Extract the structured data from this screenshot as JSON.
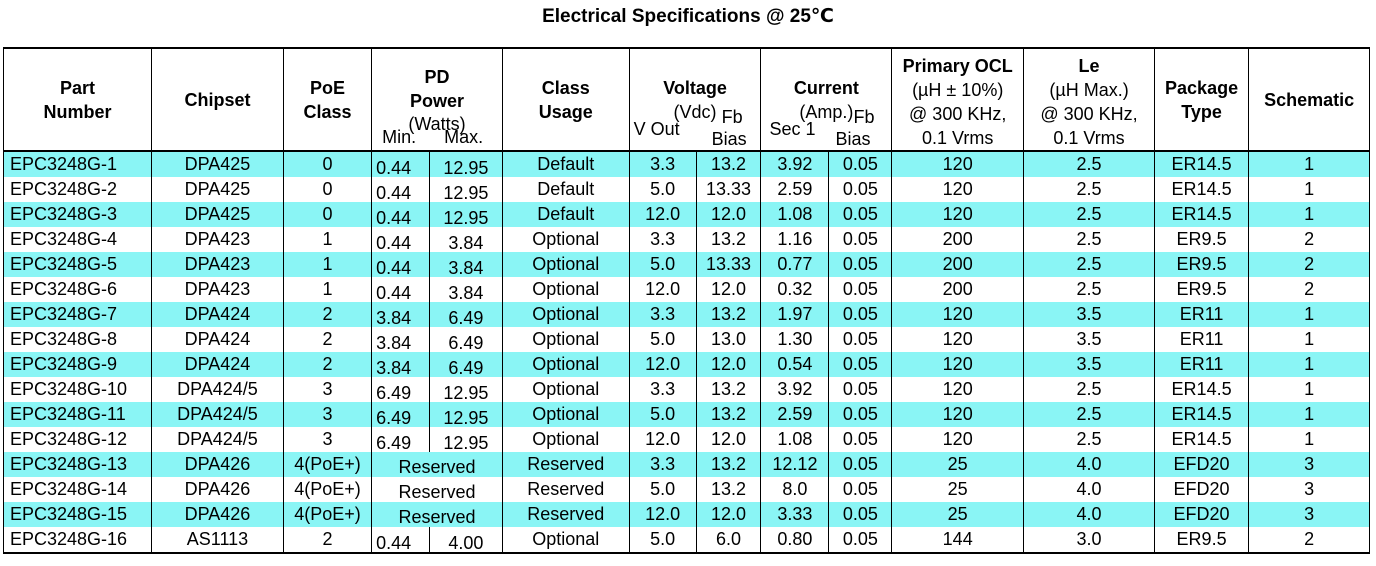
{
  "title": "Electrical Specifications @ 25℃",
  "headers": {
    "part": [
      "Part",
      "Number"
    ],
    "chipset": "Chipset",
    "poe": [
      "PoE",
      "Class"
    ],
    "pd": [
      "PD",
      "Power",
      "(Watts)"
    ],
    "pd_min": "Min.",
    "pd_max": "Max.",
    "class_usage": [
      "Class",
      "Usage"
    ],
    "voltage": [
      "Voltage",
      "(Vdc)"
    ],
    "vout": "V Out",
    "vfb": [
      "Fb",
      "Bias"
    ],
    "current": [
      "Current",
      "(Amp.)"
    ],
    "isec": "Sec 1",
    "ifb": [
      "Fb",
      "Bias"
    ],
    "ocl": [
      "Primary OCL",
      "(µH ± 10%)",
      "@ 300 KHz,",
      "0.1 Vrms"
    ],
    "le": [
      "Le",
      "(µH Max.)",
      "@ 300 KHz,",
      "0.1 Vrms"
    ],
    "package": [
      "Package",
      "Type"
    ],
    "schematic": "Schematic"
  },
  "rows": [
    {
      "part": "EPC3248G-1",
      "chipset": "DPA425",
      "poe": "0",
      "pd_min": "0.44",
      "pd_max": "12.95",
      "usage": "Default",
      "vout": "3.3",
      "vfb": "13.2",
      "isec": "3.92",
      "ifb": "0.05",
      "ocl": "120",
      "le": "2.5",
      "pkg": "ER14.5",
      "sch": "1"
    },
    {
      "part": "EPC3248G-2",
      "chipset": "DPA425",
      "poe": "0",
      "pd_min": "0.44",
      "pd_max": "12.95",
      "usage": "Default",
      "vout": "5.0",
      "vfb": "13.33",
      "isec": "2.59",
      "ifb": "0.05",
      "ocl": "120",
      "le": "2.5",
      "pkg": "ER14.5",
      "sch": "1"
    },
    {
      "part": "EPC3248G-3",
      "chipset": "DPA425",
      "poe": "0",
      "pd_min": "0.44",
      "pd_max": "12.95",
      "usage": "Default",
      "vout": "12.0",
      "vfb": "12.0",
      "isec": "1.08",
      "ifb": "0.05",
      "ocl": "120",
      "le": "2.5",
      "pkg": "ER14.5",
      "sch": "1"
    },
    {
      "part": "EPC3248G-4",
      "chipset": "DPA423",
      "poe": "1",
      "pd_min": "0.44",
      "pd_max": "3.84",
      "usage": "Optional",
      "vout": "3.3",
      "vfb": "13.2",
      "isec": "1.16",
      "ifb": "0.05",
      "ocl": "200",
      "le": "2.5",
      "pkg": "ER9.5",
      "sch": "2"
    },
    {
      "part": "EPC3248G-5",
      "chipset": "DPA423",
      "poe": "1",
      "pd_min": "0.44",
      "pd_max": "3.84",
      "usage": "Optional",
      "vout": "5.0",
      "vfb": "13.33",
      "isec": "0.77",
      "ifb": "0.05",
      "ocl": "200",
      "le": "2.5",
      "pkg": "ER9.5",
      "sch": "2"
    },
    {
      "part": "EPC3248G-6",
      "chipset": "DPA423",
      "poe": "1",
      "pd_min": "0.44",
      "pd_max": "3.84",
      "usage": "Optional",
      "vout": "12.0",
      "vfb": "12.0",
      "isec": "0.32",
      "ifb": "0.05",
      "ocl": "200",
      "le": "2.5",
      "pkg": "ER9.5",
      "sch": "2"
    },
    {
      "part": "EPC3248G-7",
      "chipset": "DPA424",
      "poe": "2",
      "pd_min": "3.84",
      "pd_max": "6.49",
      "usage": "Optional",
      "vout": "3.3",
      "vfb": "13.2",
      "isec": "1.97",
      "ifb": "0.05",
      "ocl": "120",
      "le": "3.5",
      "pkg": "ER11",
      "sch": "1"
    },
    {
      "part": "EPC3248G-8",
      "chipset": "DPA424",
      "poe": "2",
      "pd_min": "3.84",
      "pd_max": "6.49",
      "usage": "Optional",
      "vout": "5.0",
      "vfb": "13.0",
      "isec": "1.30",
      "ifb": "0.05",
      "ocl": "120",
      "le": "3.5",
      "pkg": "ER11",
      "sch": "1"
    },
    {
      "part": "EPC3248G-9",
      "chipset": "DPA424",
      "poe": "2",
      "pd_min": "3.84",
      "pd_max": "6.49",
      "usage": "Optional",
      "vout": "12.0",
      "vfb": "12.0",
      "isec": "0.54",
      "ifb": "0.05",
      "ocl": "120",
      "le": "3.5",
      "pkg": "ER11",
      "sch": "1"
    },
    {
      "part": "EPC3248G-10",
      "chipset": "DPA424/5",
      "poe": "3",
      "pd_min": "6.49",
      "pd_max": "12.95",
      "usage": "Optional",
      "vout": "3.3",
      "vfb": "13.2",
      "isec": "3.92",
      "ifb": "0.05",
      "ocl": "120",
      "le": "2.5",
      "pkg": "ER14.5",
      "sch": "1"
    },
    {
      "part": "EPC3248G-11",
      "chipset": "DPA424/5",
      "poe": "3",
      "pd_min": "6.49",
      "pd_max": "12.95",
      "usage": "Optional",
      "vout": "5.0",
      "vfb": "13.2",
      "isec": "2.59",
      "ifb": "0.05",
      "ocl": "120",
      "le": "2.5",
      "pkg": "ER14.5",
      "sch": "1"
    },
    {
      "part": "EPC3248G-12",
      "chipset": "DPA424/5",
      "poe": "3",
      "pd_min": "6.49",
      "pd_max": "12.95",
      "usage": "Optional",
      "vout": "12.0",
      "vfb": "12.0",
      "isec": "1.08",
      "ifb": "0.05",
      "ocl": "120",
      "le": "2.5",
      "pkg": "ER14.5",
      "sch": "1"
    },
    {
      "part": "EPC3248G-13",
      "chipset": "DPA426",
      "poe": "4(PoE+)",
      "pd_reserved": "Reserved",
      "usage": "Reserved",
      "vout": "3.3",
      "vfb": "13.2",
      "isec": "12.12",
      "ifb": "0.05",
      "ocl": "25",
      "le": "4.0",
      "pkg": "EFD20",
      "sch": "3"
    },
    {
      "part": "EPC3248G-14",
      "chipset": "DPA426",
      "poe": "4(PoE+)",
      "pd_reserved": "Reserved",
      "usage": "Reserved",
      "vout": "5.0",
      "vfb": "13.2",
      "isec": "8.0",
      "ifb": "0.05",
      "ocl": "25",
      "le": "4.0",
      "pkg": "EFD20",
      "sch": "3"
    },
    {
      "part": "EPC3248G-15",
      "chipset": "DPA426",
      "poe": "4(PoE+)",
      "pd_reserved": "Reserved",
      "usage": "Reserved",
      "vout": "12.0",
      "vfb": "12.0",
      "isec": "3.33",
      "ifb": "0.05",
      "ocl": "25",
      "le": "4.0",
      "pkg": "EFD20",
      "sch": "3"
    },
    {
      "part": "EPC3248G-16",
      "chipset": "AS1113",
      "poe": "2",
      "pd_min": "0.44",
      "pd_max": "4.00",
      "usage": "Optional",
      "vout": "5.0",
      "vfb": "6.0",
      "isec": "0.80",
      "ifb": "0.05",
      "ocl": "144",
      "le": "3.0",
      "pkg": "ER9.5",
      "sch": "2"
    }
  ],
  "row_shading": [
    true,
    false,
    true,
    false,
    true,
    false,
    true,
    false,
    true,
    false,
    true,
    false,
    true,
    false,
    true,
    false
  ],
  "colors": {
    "row_shade": "#8af5f5",
    "border": "#000000"
  }
}
